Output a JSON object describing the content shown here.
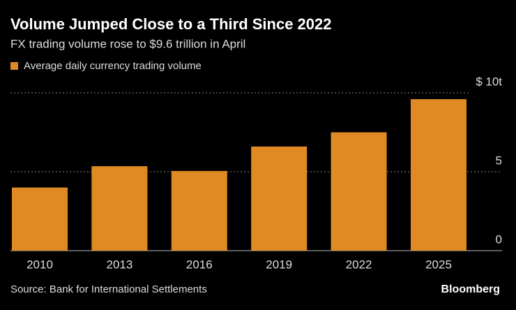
{
  "chart_data": {
    "type": "bar",
    "title": "Volume Jumped Close to a Third Since 2022",
    "subtitle": "FX trading volume rose to $9.6 trillion in April",
    "categories": [
      "2010",
      "2013",
      "2016",
      "2019",
      "2022",
      "2025"
    ],
    "series": [
      {
        "name": "Average daily currency trading volume",
        "color": "#e08a23",
        "values": [
          4.0,
          5.35,
          5.05,
          6.6,
          7.5,
          9.6
        ]
      }
    ],
    "ylim": [
      0,
      10
    ],
    "yticks": [
      0,
      5,
      {
        "value": 10,
        "label": "$ 10t"
      }
    ],
    "grid": true,
    "legend": "top-left",
    "source": "Source: Bank for International Settlements",
    "brand": "Bloomberg"
  }
}
